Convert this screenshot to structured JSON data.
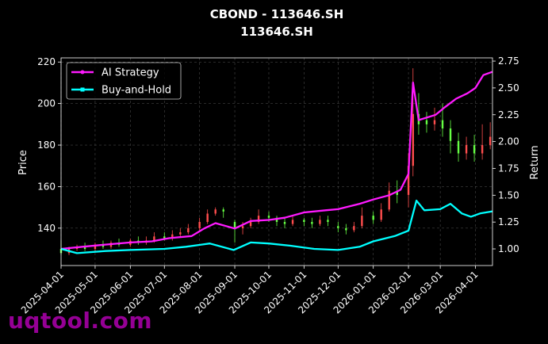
{
  "chart_data": {
    "type": "line",
    "title": "CBOND - 113646.SH",
    "subtitle": "113646.SH",
    "ylabel": "Price",
    "y2label": "Return",
    "ylim": [
      122,
      222
    ],
    "y2lim": [
      0.845,
      2.78
    ],
    "y_ticks": [
      140,
      160,
      180,
      200,
      220
    ],
    "y2_ticks": [
      1.0,
      1.25,
      1.5,
      1.75,
      2.0,
      2.25,
      2.5,
      2.75
    ],
    "y2_tick_labels": [
      "1.00",
      "1.25",
      "1.50",
      "1.75",
      "2.00",
      "2.25",
      "2.50",
      "2.75"
    ],
    "xlim": [
      "2025-04-01",
      "2026-04-16"
    ],
    "x_ticks": [
      "2025-04-01",
      "2025-05-01",
      "2025-06-01",
      "2025-07-01",
      "2025-08-01",
      "2025-09-01",
      "2025-10-01",
      "2025-11-01",
      "2025-12-01",
      "2026-01-01",
      "2026-02-01",
      "2026-03-01",
      "2026-04-01"
    ],
    "grid": true,
    "legend_position": "top-left",
    "candles": [
      [
        "2025-04-01",
        130,
        128,
        134,
        127
      ],
      [
        "2025-04-08",
        128,
        130,
        131,
        127
      ],
      [
        "2025-04-15",
        130,
        131,
        132,
        129
      ],
      [
        "2025-04-22",
        131,
        130,
        133,
        129
      ],
      [
        "2025-05-01",
        130,
        132,
        133,
        129
      ],
      [
        "2025-05-08",
        132,
        131,
        134,
        130
      ],
      [
        "2025-05-15",
        131,
        133,
        134,
        130
      ],
      [
        "2025-05-22",
        133,
        132,
        135,
        131
      ],
      [
        "2025-06-01",
        132,
        134,
        135,
        131
      ],
      [
        "2025-06-08",
        134,
        133,
        136,
        132
      ],
      [
        "2025-06-15",
        133,
        134,
        136,
        132
      ],
      [
        "2025-06-22",
        134,
        136,
        138,
        133
      ],
      [
        "2025-07-01",
        136,
        135,
        138,
        134
      ],
      [
        "2025-07-08",
        135,
        137,
        139,
        134
      ],
      [
        "2025-07-15",
        137,
        138,
        140,
        136
      ],
      [
        "2025-07-22",
        138,
        140,
        142,
        137
      ],
      [
        "2025-08-01",
        140,
        143,
        145,
        139
      ],
      [
        "2025-08-08",
        143,
        147,
        149,
        142
      ],
      [
        "2025-08-15",
        147,
        149,
        150,
        146
      ],
      [
        "2025-08-22",
        149,
        148,
        150,
        145
      ],
      [
        "2025-09-01",
        143,
        140,
        144,
        133
      ],
      [
        "2025-09-08",
        140,
        141,
        143,
        137
      ],
      [
        "2025-09-15",
        141,
        143,
        145,
        140
      ],
      [
        "2025-09-22",
        143,
        146,
        149,
        142
      ],
      [
        "2025-10-01",
        146,
        145,
        148,
        143
      ],
      [
        "2025-10-08",
        145,
        143,
        146,
        141
      ],
      [
        "2025-10-15",
        143,
        142,
        145,
        140
      ],
      [
        "2025-10-22",
        142,
        144,
        146,
        141
      ],
      [
        "2025-11-01",
        144,
        143,
        145,
        141
      ],
      [
        "2025-11-08",
        143,
        142,
        145,
        140
      ],
      [
        "2025-11-15",
        142,
        144,
        146,
        141
      ],
      [
        "2025-11-22",
        144,
        143,
        146,
        141
      ],
      [
        "2025-12-01",
        141,
        140,
        143,
        138
      ],
      [
        "2025-12-08",
        140,
        139,
        142,
        137
      ],
      [
        "2025-12-15",
        139,
        141,
        143,
        138
      ],
      [
        "2025-12-22",
        141,
        146,
        150,
        140
      ],
      [
        "2026-01-01",
        146,
        144,
        148,
        142
      ],
      [
        "2026-01-08",
        144,
        149,
        152,
        143
      ],
      [
        "2026-01-15",
        149,
        158,
        162,
        148
      ],
      [
        "2026-01-22",
        158,
        156,
        163,
        152
      ],
      [
        "2026-02-01",
        156,
        170,
        176,
        150
      ],
      [
        "2026-02-05",
        170,
        195,
        217,
        165
      ],
      [
        "2026-02-10",
        195,
        190,
        205,
        185
      ],
      [
        "2026-02-17",
        192,
        190,
        196,
        186
      ],
      [
        "2026-02-24",
        190,
        192,
        198,
        187
      ],
      [
        "2026-03-03",
        192,
        188,
        200,
        184
      ],
      [
        "2026-03-10",
        188,
        182,
        192,
        176
      ],
      [
        "2026-03-17",
        182,
        176,
        186,
        172
      ],
      [
        "2026-03-24",
        176,
        180,
        184,
        173
      ],
      [
        "2026-03-31",
        180,
        176,
        185,
        172
      ],
      [
        "2026-04-07",
        176,
        180,
        190,
        173
      ],
      [
        "2026-04-14",
        180,
        184,
        191,
        178
      ]
    ],
    "series": [
      {
        "name": "AI Strategy",
        "color": "#ff1aff",
        "x": [
          "2025-04-01",
          "2025-04-20",
          "2025-05-10",
          "2025-06-01",
          "2025-06-20",
          "2025-07-05",
          "2025-07-25",
          "2025-08-05",
          "2025-08-15",
          "2025-09-01",
          "2025-09-15",
          "2025-10-01",
          "2025-10-15",
          "2025-11-01",
          "2025-11-20",
          "2025-12-01",
          "2025-12-20",
          "2026-01-01",
          "2026-01-15",
          "2026-01-25",
          "2026-02-01",
          "2026-02-05",
          "2026-02-10",
          "2026-02-25",
          "2026-03-05",
          "2026-03-15",
          "2026-03-25",
          "2026-04-01",
          "2026-04-08",
          "2026-04-16"
        ],
        "y": [
          1.0,
          1.02,
          1.04,
          1.06,
          1.07,
          1.1,
          1.12,
          1.19,
          1.24,
          1.19,
          1.26,
          1.27,
          1.29,
          1.34,
          1.36,
          1.37,
          1.42,
          1.46,
          1.5,
          1.55,
          1.7,
          2.55,
          2.2,
          2.25,
          2.32,
          2.4,
          2.45,
          2.5,
          2.62,
          2.65
        ]
      },
      {
        "name": "Buy-and-Hold",
        "color": "#00ffff",
        "x": [
          "2025-04-01",
          "2025-04-15",
          "2025-05-10",
          "2025-06-01",
          "2025-07-01",
          "2025-07-20",
          "2025-08-10",
          "2025-08-31",
          "2025-09-15",
          "2025-10-01",
          "2025-10-20",
          "2025-11-10",
          "2025-12-01",
          "2025-12-20",
          "2026-01-01",
          "2026-01-20",
          "2026-02-01",
          "2026-02-08",
          "2026-02-15",
          "2026-03-01",
          "2026-03-10",
          "2026-03-20",
          "2026-03-28",
          "2026-04-05",
          "2026-04-16"
        ],
        "y": [
          1.0,
          0.96,
          0.98,
          0.99,
          1.0,
          1.02,
          1.05,
          0.99,
          1.06,
          1.05,
          1.03,
          1.0,
          0.99,
          1.02,
          1.07,
          1.12,
          1.17,
          1.45,
          1.36,
          1.37,
          1.42,
          1.33,
          1.3,
          1.33,
          1.35
        ]
      }
    ]
  },
  "watermark": "uqtool.com"
}
